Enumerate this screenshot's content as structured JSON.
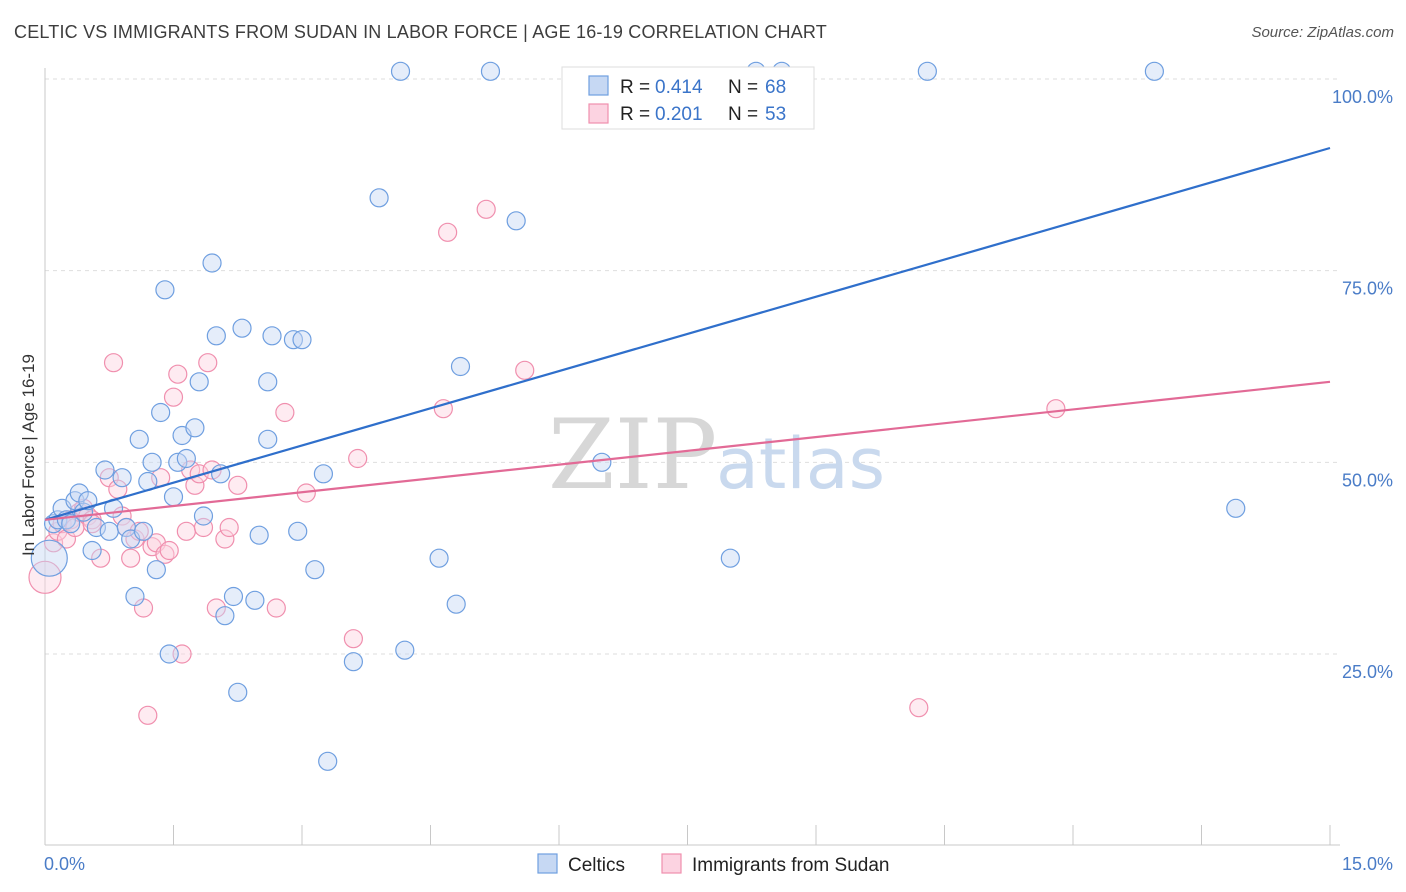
{
  "header": {
    "title": "CELTIC VS IMMIGRANTS FROM SUDAN IN LABOR FORCE | AGE 16-19 CORRELATION CHART",
    "source": "Source: ZipAtlas.com"
  },
  "watermark": {
    "zip": "ZIP",
    "atlas": "atlas"
  },
  "chart_data": {
    "type": "scatter",
    "title": "CELTIC VS IMMIGRANTS FROM SUDAN IN LABOR FORCE | AGE 16-19 CORRELATION CHART",
    "xlabel": "",
    "ylabel": "In Labor Force | Age 16-19",
    "xlim": [
      0,
      15
    ],
    "ylim": [
      0,
      105
    ],
    "x_tick_labels": [
      "0.0%",
      "15.0%"
    ],
    "y_ticks": [
      25,
      50,
      75,
      100
    ],
    "y_tick_labels": [
      "25.0%",
      "50.0%",
      "75.0%",
      "100.0%"
    ],
    "grid": true,
    "legend_position": "top-center",
    "colors": {
      "celtics": "#6f9fe0",
      "sudan": "#f08fae",
      "celtics_line": "#2f6fcb",
      "sudan_line": "#e26a96"
    },
    "legend": {
      "rows": [
        {
          "r_label": "R = ",
          "r_value": "0.414",
          "n_label": "N = ",
          "n_value": "68"
        },
        {
          "r_label": "R = ",
          "r_value": "0.201",
          "n_label": "N = ",
          "n_value": "53"
        }
      ]
    },
    "series": [
      {
        "name": "Celtics",
        "trend": {
          "x0": 0,
          "y0": 42.5,
          "x1": 15,
          "y1": 91.0
        },
        "points": [
          [
            0.05,
            37.5,
            18
          ],
          [
            0.1,
            42.0,
            9
          ],
          [
            0.15,
            42.5,
            9
          ],
          [
            0.2,
            44.0,
            9
          ],
          [
            0.25,
            42.5,
            9
          ],
          [
            0.3,
            42.0,
            9
          ],
          [
            0.35,
            45.0,
            9
          ],
          [
            0.4,
            46.0,
            9
          ],
          [
            0.45,
            43.5,
            9
          ],
          [
            0.5,
            45.0,
            9
          ],
          [
            0.55,
            38.5,
            9
          ],
          [
            0.6,
            41.5,
            9
          ],
          [
            0.7,
            49.0,
            9
          ],
          [
            0.75,
            41.0,
            9
          ],
          [
            0.8,
            44.0,
            9
          ],
          [
            0.9,
            48.0,
            9
          ],
          [
            0.95,
            41.5,
            9
          ],
          [
            1.0,
            40.0,
            9
          ],
          [
            1.05,
            32.5,
            9
          ],
          [
            1.1,
            53.0,
            9
          ],
          [
            1.15,
            41.0,
            9
          ],
          [
            1.2,
            47.5,
            9
          ],
          [
            1.25,
            50.0,
            9
          ],
          [
            1.3,
            36.0,
            9
          ],
          [
            1.35,
            56.5,
            9
          ],
          [
            1.4,
            72.5,
            9
          ],
          [
            1.45,
            25.0,
            9
          ],
          [
            1.5,
            45.5,
            9
          ],
          [
            1.55,
            50.0,
            9
          ],
          [
            1.6,
            53.5,
            9
          ],
          [
            1.65,
            50.5,
            9
          ],
          [
            1.75,
            54.5,
            9
          ],
          [
            1.8,
            60.5,
            9
          ],
          [
            1.85,
            43.0,
            9
          ],
          [
            1.95,
            76.0,
            9
          ],
          [
            2.0,
            66.5,
            9
          ],
          [
            2.05,
            48.5,
            9
          ],
          [
            2.1,
            30.0,
            9
          ],
          [
            2.2,
            32.5,
            9
          ],
          [
            2.25,
            20.0,
            9
          ],
          [
            2.3,
            67.5,
            9
          ],
          [
            2.45,
            32.0,
            9
          ],
          [
            2.5,
            40.5,
            9
          ],
          [
            2.6,
            53.0,
            9
          ],
          [
            2.6,
            60.5,
            9
          ],
          [
            2.65,
            66.5,
            9
          ],
          [
            2.9,
            66.0,
            9
          ],
          [
            2.95,
            41.0,
            9
          ],
          [
            3.0,
            66.0,
            9
          ],
          [
            3.15,
            36.0,
            9
          ],
          [
            3.25,
            48.5,
            9
          ],
          [
            3.3,
            11.0,
            9
          ],
          [
            3.6,
            24.0,
            9
          ],
          [
            3.9,
            84.5,
            9
          ],
          [
            4.15,
            101.0,
            9
          ],
          [
            4.2,
            25.5,
            9
          ],
          [
            4.6,
            37.5,
            9
          ],
          [
            4.8,
            31.5,
            9
          ],
          [
            4.85,
            62.5,
            9
          ],
          [
            5.2,
            101.0,
            9
          ],
          [
            5.5,
            81.5,
            9
          ],
          [
            6.5,
            50.0,
            9
          ],
          [
            8.0,
            37.5,
            9
          ],
          [
            8.3,
            101.0,
            9
          ],
          [
            8.6,
            101.0,
            9
          ],
          [
            10.3,
            101.0,
            9
          ],
          [
            13.9,
            44.0,
            9
          ],
          [
            12.95,
            101.0,
            9
          ]
        ]
      },
      {
        "name": "Immigrants from Sudan",
        "trend": {
          "x0": 0,
          "y0": 42.5,
          "x1": 15,
          "y1": 60.5
        },
        "points": [
          [
            0.0,
            35.0,
            16
          ],
          [
            0.1,
            39.5,
            9
          ],
          [
            0.15,
            41.0,
            9
          ],
          [
            0.2,
            42.0,
            9
          ],
          [
            0.25,
            40.0,
            9
          ],
          [
            0.3,
            42.5,
            9
          ],
          [
            0.35,
            41.5,
            9
          ],
          [
            0.4,
            43.5,
            9
          ],
          [
            0.45,
            44.0,
            9
          ],
          [
            0.5,
            43.0,
            9
          ],
          [
            0.55,
            42.5,
            9
          ],
          [
            0.65,
            37.5,
            9
          ],
          [
            0.75,
            48.0,
            9
          ],
          [
            0.8,
            63.0,
            9
          ],
          [
            0.85,
            46.5,
            9
          ],
          [
            0.9,
            43.0,
            9
          ],
          [
            0.95,
            41.5,
            9
          ],
          [
            1.0,
            37.5,
            9
          ],
          [
            1.05,
            40.0,
            9
          ],
          [
            1.1,
            41.0,
            9
          ],
          [
            1.15,
            31.0,
            9
          ],
          [
            1.2,
            17.0,
            9
          ],
          [
            1.25,
            39.0,
            9
          ],
          [
            1.3,
            39.5,
            9
          ],
          [
            1.35,
            48.0,
            9
          ],
          [
            1.4,
            38.0,
            9
          ],
          [
            1.45,
            38.5,
            9
          ],
          [
            1.5,
            58.5,
            9
          ],
          [
            1.55,
            61.5,
            9
          ],
          [
            1.6,
            25.0,
            9
          ],
          [
            1.65,
            41.0,
            9
          ],
          [
            1.7,
            49.0,
            9
          ],
          [
            1.75,
            47.0,
            9
          ],
          [
            1.8,
            48.5,
            9
          ],
          [
            1.85,
            41.5,
            9
          ],
          [
            1.9,
            63.0,
            9
          ],
          [
            1.95,
            49.0,
            9
          ],
          [
            2.0,
            31.0,
            9
          ],
          [
            2.1,
            40.0,
            9
          ],
          [
            2.15,
            41.5,
            9
          ],
          [
            2.25,
            47.0,
            9
          ],
          [
            2.7,
            31.0,
            9
          ],
          [
            2.8,
            56.5,
            9
          ],
          [
            3.05,
            46.0,
            9
          ],
          [
            3.6,
            27.0,
            9
          ],
          [
            3.65,
            50.5,
            9
          ],
          [
            4.65,
            57.0,
            9
          ],
          [
            4.7,
            80.0,
            9
          ],
          [
            5.15,
            83.0,
            9
          ],
          [
            5.6,
            62.0,
            9
          ],
          [
            10.2,
            18.0,
            9
          ],
          [
            11.8,
            57.0,
            9
          ],
          [
            0.55,
            42.0,
            9
          ]
        ]
      }
    ]
  }
}
